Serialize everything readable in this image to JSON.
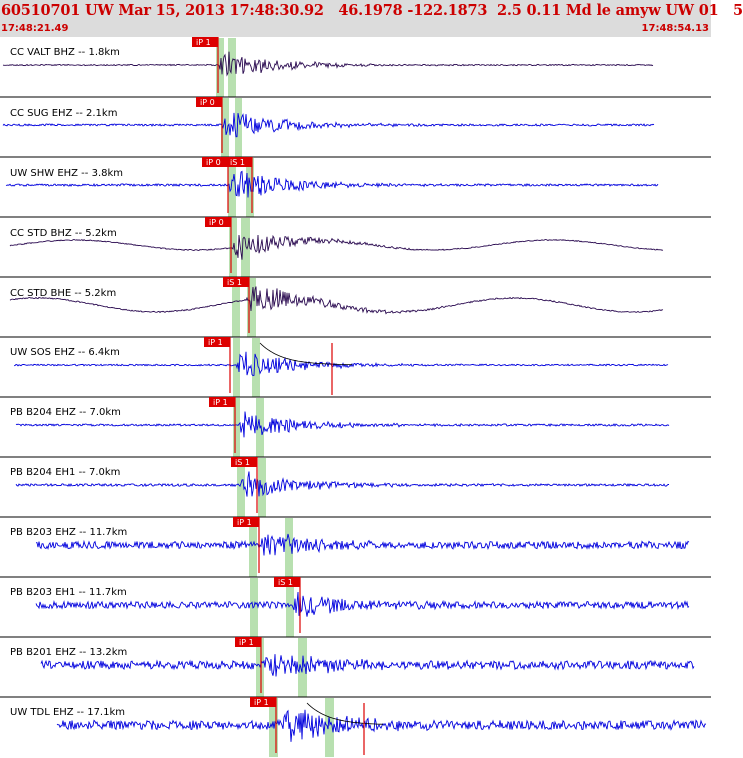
{
  "header": {
    "title": "60510701 UW Mar 15, 2013 17:48:30.92   46.1978 -122.1873  2.5 0.11 Md le amyw UW 01   5",
    "time_start": "17:48:21.49",
    "time_end": "17:48:54.13",
    "text_color": "#cc0000",
    "bg_color": "#dcdcdc"
  },
  "colors": {
    "trace_blue": "#0000dd",
    "trace_dark": "#2a0a50",
    "pick": "#dd0000",
    "window": "#b8e0b0",
    "separator": "#000000"
  },
  "traces": [
    {
      "label": "CC VALT BHZ -- 1.8km",
      "color": "dark",
      "picks": [
        "iP 1"
      ],
      "coda": false
    },
    {
      "label": "CC SUG EHZ -- 2.1km",
      "color": "blue",
      "picks": [
        "iP 0"
      ],
      "coda": false
    },
    {
      "label": "UW SHW EHZ -- 3.8km",
      "color": "blue",
      "picks": [
        "iP 0",
        "iS 1"
      ],
      "coda": false
    },
    {
      "label": "CC STD BHZ -- 5.2km",
      "color": "dark",
      "picks": [
        "iP 0"
      ],
      "coda": false
    },
    {
      "label": "CC STD BHE -- 5.2km",
      "color": "dark",
      "picks": [
        "iS 1"
      ],
      "coda": false
    },
    {
      "label": "UW SOS EHZ -- 6.4km",
      "color": "blue",
      "picks": [
        "iP 1"
      ],
      "coda": true
    },
    {
      "label": "PB B204 EHZ -- 7.0km",
      "color": "blue",
      "picks": [
        "iP 1"
      ],
      "coda": false
    },
    {
      "label": "PB B204 EH1 -- 7.0km",
      "color": "blue",
      "picks": [
        "iS 1"
      ],
      "coda": false
    },
    {
      "label": "PB B203 EHZ -- 11.7km",
      "color": "blue",
      "picks": [
        "iP 1"
      ],
      "coda": false
    },
    {
      "label": "PB B203 EH1 -- 11.7km",
      "color": "blue",
      "picks": [
        "iS 1"
      ],
      "coda": false
    },
    {
      "label": "PB B201 EHZ -- 13.2km",
      "color": "blue",
      "picks": [
        "iP 1"
      ],
      "coda": false
    },
    {
      "label": "UW TDL EHZ -- 17.1km",
      "color": "blue",
      "picks": [
        "iP 1"
      ],
      "coda": true
    }
  ]
}
